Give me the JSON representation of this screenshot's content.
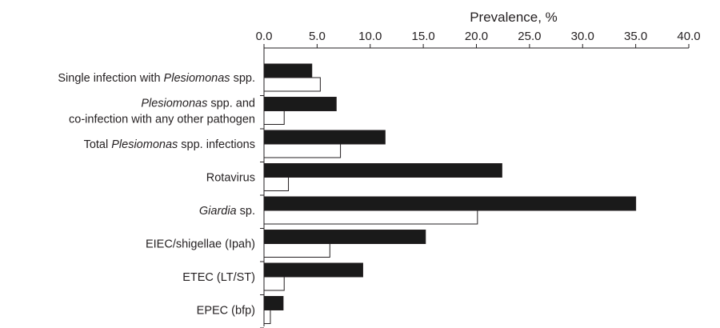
{
  "chart_data": {
    "type": "bar",
    "orientation": "horizontal",
    "xlabel": "Prevalence, %",
    "xaxis_position": "top",
    "xlim": [
      0,
      40
    ],
    "xticks": [
      "0.0",
      "5.0",
      "10.0",
      "15.0",
      "20.0",
      "25.0",
      "30.0",
      "35.0",
      "40.0"
    ],
    "categories": [
      {
        "lines": [
          [
            {
              "text": "Single infection with "
            },
            {
              "text": "Plesiomonas",
              "italic": true
            },
            {
              "text": " spp."
            }
          ]
        ]
      },
      {
        "lines": [
          [
            {
              "text": "Plesiomonas",
              "italic": true
            },
            {
              "text": " spp. and"
            }
          ],
          [
            {
              "text": "co-infection with any other pathogen"
            }
          ]
        ]
      },
      {
        "lines": [
          [
            {
              "text": "Total "
            },
            {
              "text": "Plesiomonas",
              "italic": true
            },
            {
              "text": " spp. infections"
            }
          ]
        ]
      },
      {
        "lines": [
          [
            {
              "text": "Rotavirus"
            }
          ]
        ]
      },
      {
        "lines": [
          [
            {
              "text": "Giardia",
              "italic": true
            },
            {
              "text": " sp."
            }
          ]
        ]
      },
      {
        "lines": [
          [
            {
              "text": "EIEC/shigellae (Ipah)"
            }
          ]
        ]
      },
      {
        "lines": [
          [
            {
              "text": "ETEC (LT/ST)"
            }
          ]
        ]
      },
      {
        "lines": [
          [
            {
              "text": "EPEC (bfp)"
            }
          ]
        ]
      }
    ],
    "series": [
      {
        "fill": "#1a1a1a",
        "values": [
          4.5,
          6.8,
          11.4,
          22.4,
          35.0,
          15.2,
          9.3,
          1.8
        ]
      },
      {
        "fill": "#ffffff",
        "values": [
          5.3,
          1.9,
          7.2,
          2.3,
          20.1,
          6.2,
          1.9,
          0.6
        ]
      }
    ],
    "grid": false,
    "legend": "none",
    "colors": {
      "axis": "#231f20",
      "bar_stroke": "#231f20"
    }
  }
}
